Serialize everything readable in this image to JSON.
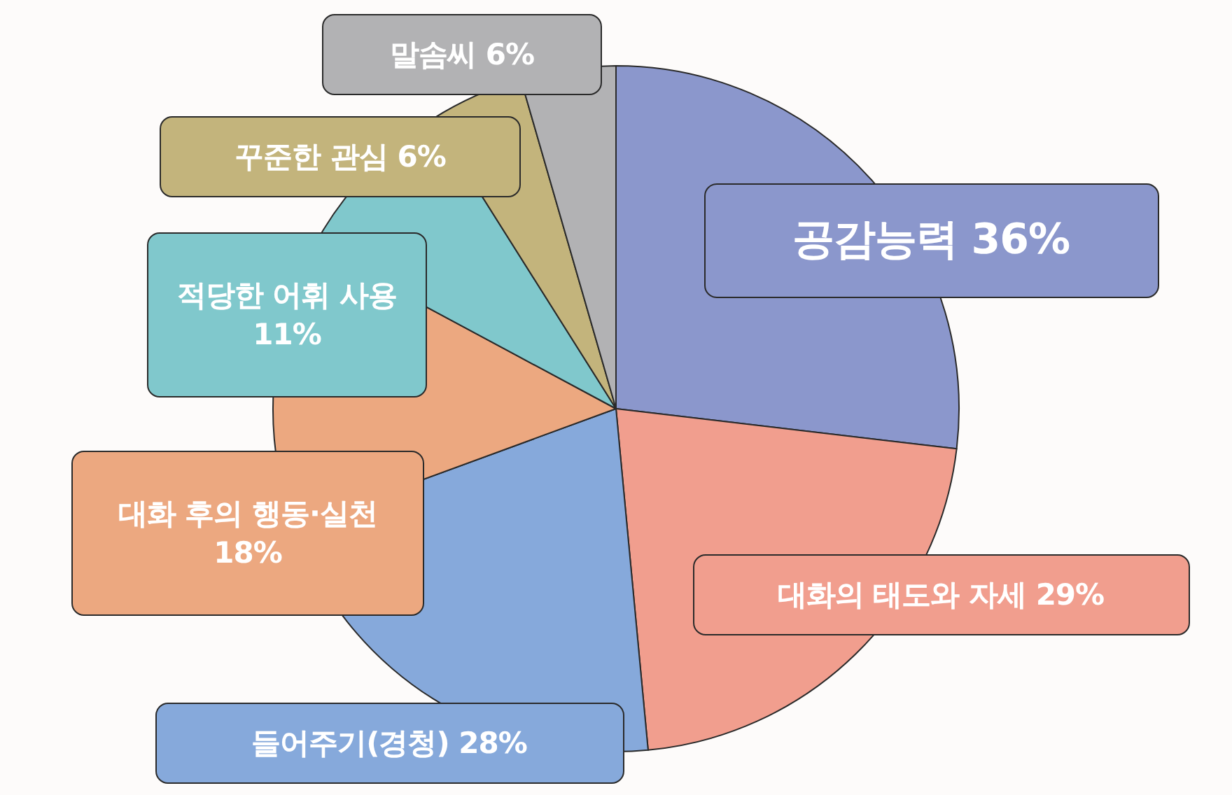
{
  "chart_data": {
    "type": "pie",
    "categories": [
      "공감능력",
      "대화의 태도와 자세",
      "들어주기(경청)",
      "대화 후의 행동·실천",
      "적당한 어휘 사용",
      "꾸준한 관심",
      "말솜씨"
    ],
    "values": [
      36,
      29,
      28,
      18,
      11,
      6,
      6
    ],
    "value_labels": [
      "36%",
      "29%",
      "28%",
      "18%",
      "11%",
      "6%",
      "6%"
    ],
    "colors": [
      "#8b97cc",
      "#f19e8e",
      "#86a9db",
      "#eca880",
      "#80c8cc",
      "#c3b47c",
      "#b2b2b4"
    ],
    "legend": false
  }
}
